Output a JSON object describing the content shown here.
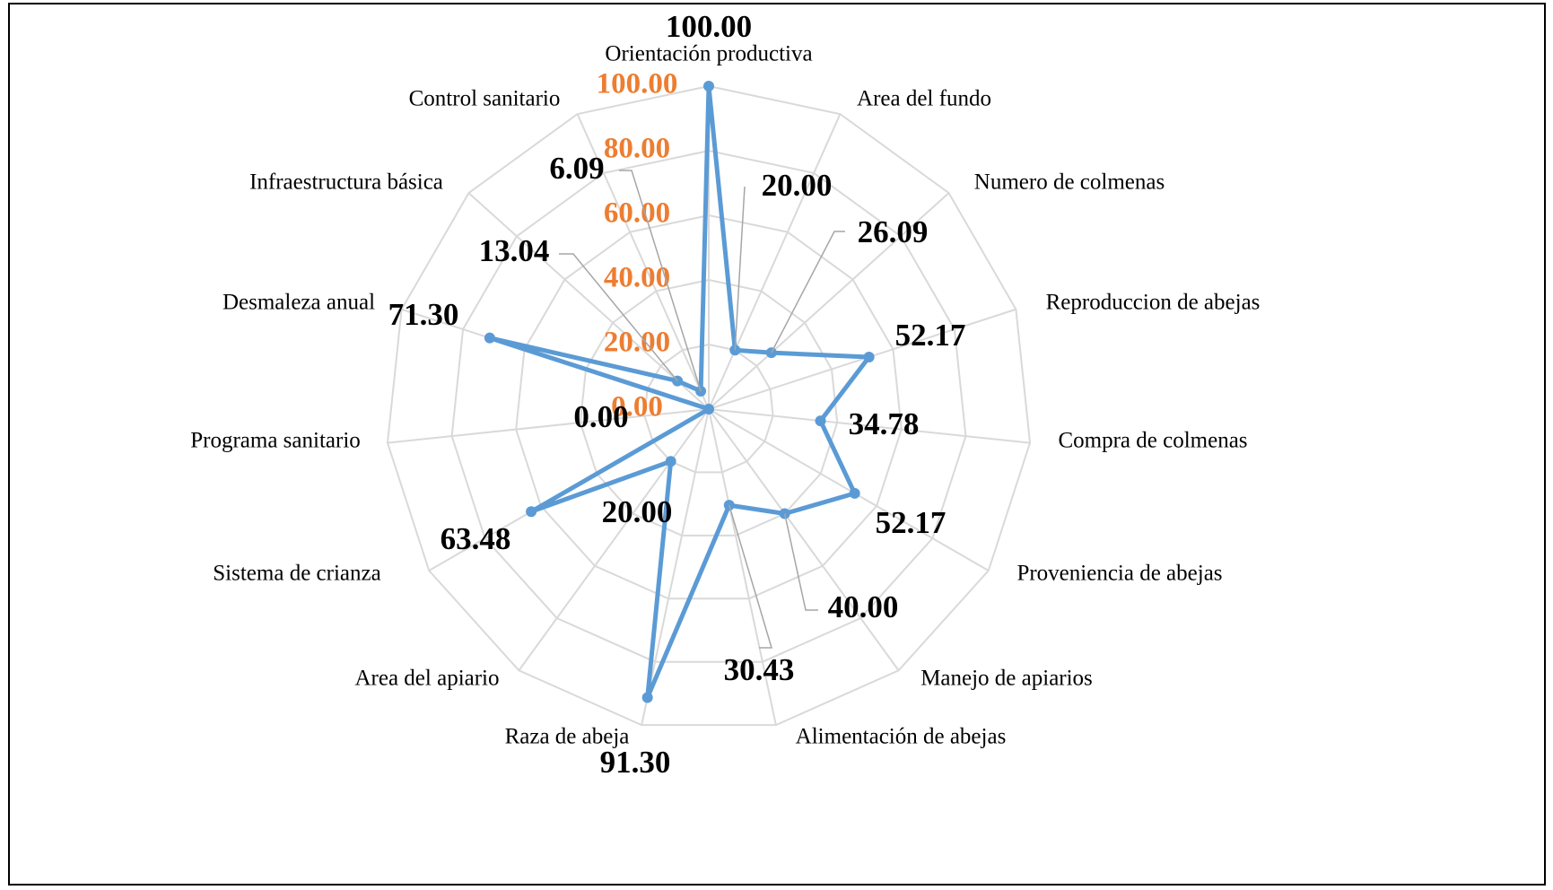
{
  "chart_data": {
    "type": "radar",
    "categories": [
      "Orientación productiva",
      "Area del fundo",
      "Numero de colmenas",
      "Reproduccion de abejas",
      "Compra de colmenas",
      "Proveniencia de abejas",
      "Manejo de apiarios",
      "Alimentación de abejas",
      "Raza de abeja",
      "Area del apiario",
      "Sistema de crianza",
      "Programa sanitario",
      "Desmaleza anual",
      "Infraestructura básica",
      "Control sanitario"
    ],
    "values": [
      100,
      20,
      26.09,
      52.17,
      34.78,
      52.17,
      40,
      30.43,
      91.3,
      20,
      63.48,
      0,
      71.3,
      13.04,
      6.09
    ],
    "value_labels": [
      "100.00",
      "20.00",
      "26.09",
      "52.17",
      "34.78",
      "52.17",
      "40.00",
      "30.43",
      "91.30",
      "20.00",
      "63.48",
      "0.00",
      "71.30",
      "13.04",
      "6.09"
    ],
    "color": "#5b9bd5",
    "ylim": [
      0,
      100
    ],
    "yticks": [
      {
        "value": 0,
        "label": "0.00"
      },
      {
        "value": 20,
        "label": "20.00"
      },
      {
        "value": 40,
        "label": "40.00"
      },
      {
        "value": 60,
        "label": "60.00"
      },
      {
        "value": 80,
        "label": "80.00"
      },
      {
        "value": 100,
        "label": "100.00"
      }
    ],
    "tick_color": "#ed7d31",
    "grid": true
  }
}
